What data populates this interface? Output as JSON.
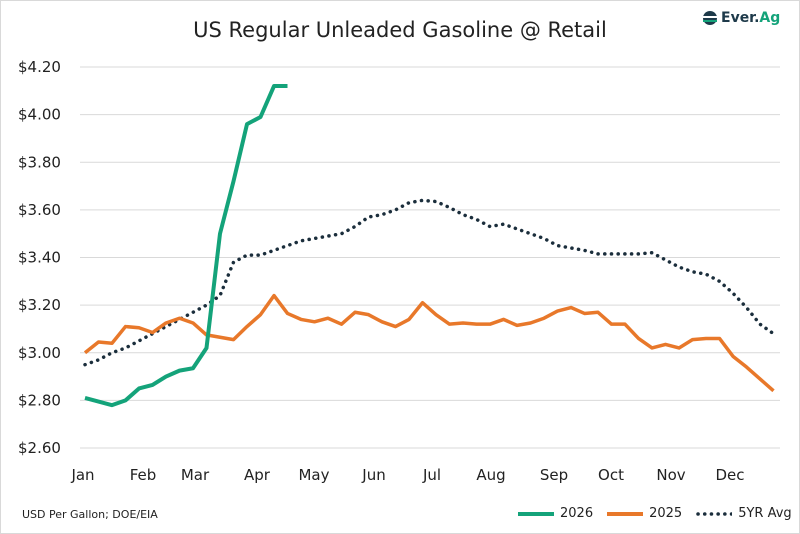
{
  "chart_data": {
    "type": "line",
    "title": "US Regular Unleaded Gasoline @ Retail",
    "xlabel": "",
    "ylabel": "",
    "x_tick_labels": [
      "Jan",
      "Feb",
      "Mar",
      "Apr",
      "May",
      "Jun",
      "Jul",
      "Aug",
      "Sep",
      "Oct",
      "Nov",
      "Dec"
    ],
    "y_tick_labels": [
      "$2.60",
      "$2.80",
      "$3.00",
      "$3.20",
      "$3.40",
      "$3.60",
      "$3.80",
      "$4.00",
      "$4.20"
    ],
    "y_ticks": [
      2.6,
      2.8,
      3.0,
      3.2,
      3.4,
      3.6,
      3.8,
      4.0,
      4.2
    ],
    "ylim": [
      2.6,
      4.2
    ],
    "x_unit": "week of year",
    "grid": true,
    "legend_placement": "bottom-right",
    "series": [
      {
        "name": "2026",
        "color": "#14a37a",
        "style": "solid",
        "values": [
          2.81,
          2.795,
          2.78,
          2.8,
          2.85,
          2.865,
          2.9,
          2.925,
          2.935,
          3.02,
          3.5,
          3.72,
          3.96,
          3.99,
          4.12,
          4.12
        ]
      },
      {
        "name": "2025",
        "color": "#e8782a",
        "style": "solid",
        "values": [
          3.0,
          3.045,
          3.04,
          3.11,
          3.105,
          3.085,
          3.125,
          3.145,
          3.125,
          3.075,
          3.065,
          3.055,
          3.11,
          3.16,
          3.24,
          3.165,
          3.14,
          3.13,
          3.145,
          3.12,
          3.17,
          3.16,
          3.13,
          3.11,
          3.14,
          3.21,
          3.16,
          3.12,
          3.125,
          3.12,
          3.12,
          3.14,
          3.115,
          3.125,
          3.145,
          3.175,
          3.19,
          3.165,
          3.17,
          3.12,
          3.12,
          3.06,
          3.02,
          3.035,
          3.02,
          3.055,
          3.06,
          3.06,
          2.985,
          2.94,
          2.89,
          2.84
        ]
      },
      {
        "name": "5YR Avg",
        "color": "#1b2e3c",
        "style": "dotted",
        "values": [
          2.95,
          2.97,
          3.0,
          3.02,
          3.05,
          3.08,
          3.11,
          3.14,
          3.17,
          3.2,
          3.24,
          3.38,
          3.41,
          3.41,
          3.43,
          3.45,
          3.47,
          3.48,
          3.49,
          3.5,
          3.53,
          3.57,
          3.58,
          3.6,
          3.63,
          3.64,
          3.635,
          3.61,
          3.58,
          3.56,
          3.53,
          3.54,
          3.52,
          3.5,
          3.48,
          3.45,
          3.44,
          3.43,
          3.415,
          3.415,
          3.415,
          3.415,
          3.42,
          3.39,
          3.36,
          3.34,
          3.33,
          3.3,
          3.25,
          3.19,
          3.12,
          3.08
        ]
      }
    ]
  },
  "footnote": "USD Per Gallon; DOE/EIA",
  "logo": {
    "text_a": "Ever.",
    "text_b": "Ag"
  }
}
